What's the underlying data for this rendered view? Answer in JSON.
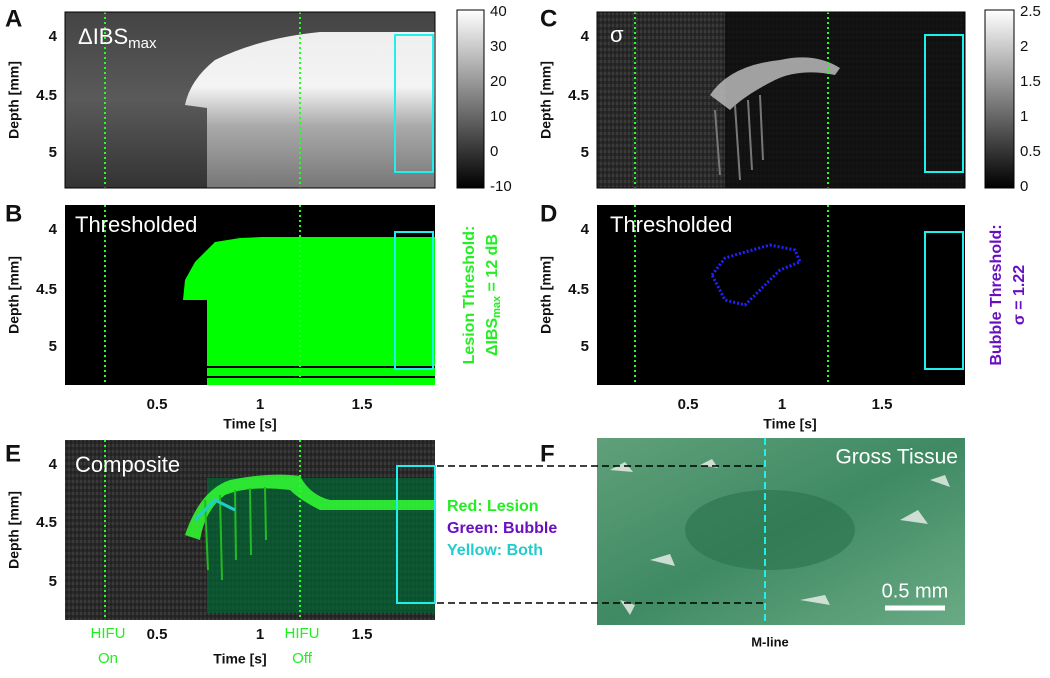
{
  "panels": {
    "A": {
      "letter": "A",
      "title": "ΔIBS",
      "title_sub": "max",
      "colorbar_ticks": [
        "40",
        "30",
        "20",
        "10",
        "0",
        "-10"
      ]
    },
    "B": {
      "letter": "B",
      "title": "Thresholded",
      "threshold_line1": "Lesion Threshold:",
      "threshold_main": "ΔIBS",
      "threshold_sub": "max",
      "threshold_rest": " = 12 dB"
    },
    "C": {
      "letter": "C",
      "title": "σ",
      "colorbar_ticks": [
        "2.5",
        "2",
        "1.5",
        "1",
        "0.5",
        "0"
      ]
    },
    "D": {
      "letter": "D",
      "title": "Thresholded",
      "threshold_line1": "Bubble Threshold:",
      "threshold_line2": "σ = 1.22"
    },
    "E": {
      "letter": "E",
      "title": "Composite",
      "hifu_on": [
        "HIFU",
        "On"
      ],
      "hifu_off": [
        "HIFU",
        "Off"
      ],
      "legend": [
        "Red: Lesion",
        "Green: Bubble",
        "Yellow: Both"
      ]
    },
    "F": {
      "letter": "F",
      "title": "Gross Tissue",
      "scale_bar": "0.5 mm",
      "m_line": "M-line"
    }
  },
  "depth_axis": {
    "label": "Depth [mm]",
    "ticks": [
      "4",
      "4.5",
      "5"
    ]
  },
  "time_axis": {
    "label": "Time [s]",
    "ticks": [
      "0.5",
      "1",
      "1.5"
    ]
  }
}
